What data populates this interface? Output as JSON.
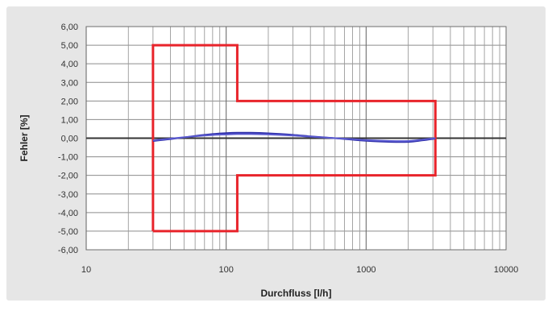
{
  "chart_data": {
    "type": "line",
    "xlabel": "Durchfluss [l/h]",
    "ylabel": "Fehler [%]",
    "x_scale": "log",
    "xlim": [
      10,
      10000
    ],
    "ylim": [
      -6,
      6
    ],
    "x_ticks": [
      {
        "value": 10,
        "label": "10"
      },
      {
        "value": 100,
        "label": "100"
      },
      {
        "value": 1000,
        "label": "1000"
      },
      {
        "value": 10000,
        "label": "10000"
      }
    ],
    "y_ticks": [
      {
        "value": 6,
        "label": "6,00"
      },
      {
        "value": 5,
        "label": "5,00"
      },
      {
        "value": 4,
        "label": "4,00"
      },
      {
        "value": 3,
        "label": "3,00"
      },
      {
        "value": 2,
        "label": "2,00"
      },
      {
        "value": 1,
        "label": "1,00"
      },
      {
        "value": 0,
        "label": "0,00"
      },
      {
        "value": -1,
        "label": "-1,00"
      },
      {
        "value": -2,
        "label": "-2,00"
      },
      {
        "value": -3,
        "label": "-3,00"
      },
      {
        "value": -4,
        "label": "-4,00"
      },
      {
        "value": -5,
        "label": "-5,00"
      },
      {
        "value": -6,
        "label": "-6,00"
      }
    ],
    "grid": true,
    "zero_line_color": "#333333",
    "plot_background": "#ffffff",
    "figure_background": "#e6e6e6",
    "series": [
      {
        "color": "#e8242b",
        "kind": "limit",
        "x": [
          30,
          30,
          120,
          120,
          3125,
          3125,
          120,
          120,
          30
        ],
        "y": [
          -5,
          5,
          5,
          2,
          2,
          -2,
          -2,
          -5,
          -5
        ]
      },
      {
        "color": "#2c2ca8",
        "kind": "curve",
        "x": [
          30,
          40,
          60,
          80,
          100,
          120,
          150,
          200,
          300,
          400,
          600,
          800,
          1000,
          1500,
          2000,
          2500,
          3125
        ],
        "y": [
          -0.15,
          -0.05,
          0.12,
          0.22,
          0.27,
          0.29,
          0.29,
          0.26,
          0.18,
          0.1,
          0.0,
          -0.08,
          -0.14,
          -0.2,
          -0.2,
          -0.12,
          -0.02
        ]
      },
      {
        "color": "#5a5ad0",
        "kind": "curve",
        "x": [
          30,
          40,
          60,
          80,
          100,
          120,
          150,
          200,
          300,
          400,
          600,
          800,
          1000,
          1500,
          2000,
          2500,
          3125
        ],
        "y": [
          -0.12,
          -0.02,
          0.1,
          0.17,
          0.2,
          0.22,
          0.22,
          0.2,
          0.14,
          0.08,
          0.0,
          -0.05,
          -0.1,
          -0.15,
          -0.15,
          -0.08,
          0.0
        ]
      }
    ]
  }
}
